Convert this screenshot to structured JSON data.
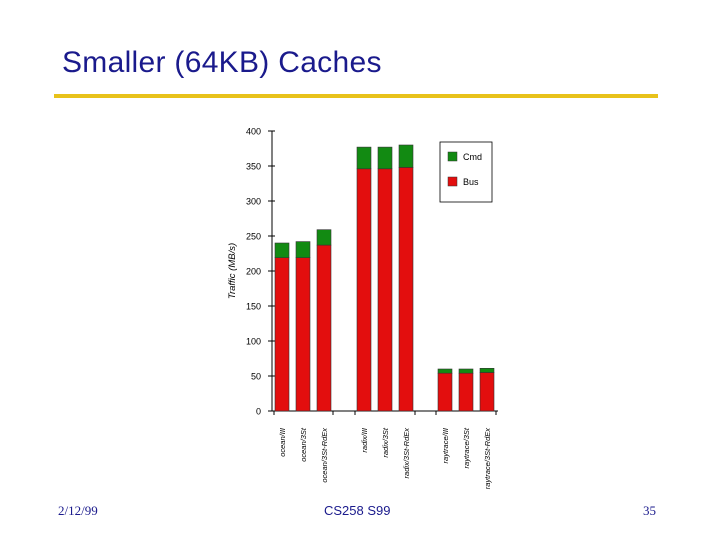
{
  "slide": {
    "title": "Smaller (64KB) Caches",
    "footer_left": "2/12/99",
    "footer_center": "CS258 S99",
    "footer_right": "35",
    "title_color": "#1a1a8c",
    "rule_color": "#e8c21a"
  },
  "chart_data": {
    "type": "bar",
    "stacked": true,
    "title": "",
    "xlabel": "",
    "ylabel": "Traffic (MB/s)",
    "ylim": [
      0,
      400
    ],
    "yticks": [
      0,
      50,
      100,
      150,
      200,
      250,
      300,
      350,
      400
    ],
    "grid": false,
    "legend_position": "top-right",
    "categories": [
      "ocean/III",
      "ocean/3St",
      "ocean/3St-RdEx",
      "radix/III",
      "radix/3St",
      "radix/3St-RdEx",
      "raytrace/III",
      "raytrace/3St",
      "raytrace/3St-RdEx"
    ],
    "groups": [
      [
        0,
        1,
        2
      ],
      [
        3,
        4,
        5
      ],
      [
        6,
        7,
        8
      ]
    ],
    "series": [
      {
        "name": "Bus",
        "color": "#e30e0e",
        "values": [
          219,
          219,
          237,
          346,
          346,
          348,
          54,
          54,
          55
        ]
      },
      {
        "name": "Cmd",
        "color": "#128a12",
        "values": [
          21,
          23,
          22,
          31,
          31,
          32,
          6,
          6,
          6
        ]
      }
    ],
    "legend_order": [
      "Cmd",
      "Bus"
    ]
  }
}
